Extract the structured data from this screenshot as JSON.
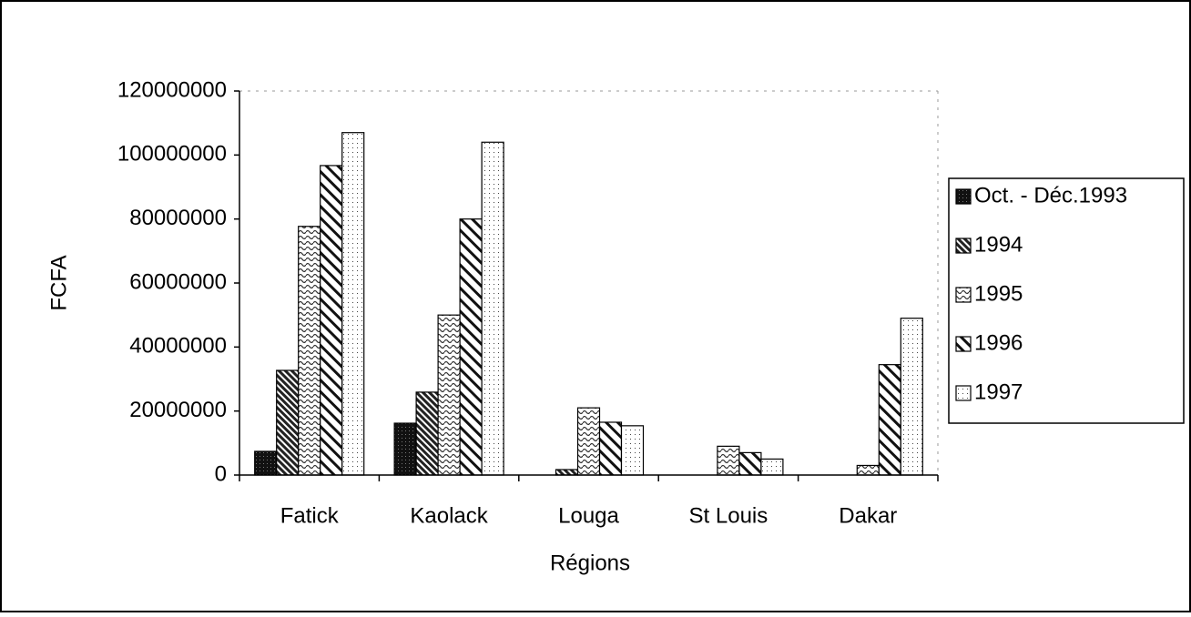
{
  "chart_data": {
    "type": "bar",
    "xlabel": "Régions",
    "ylabel": "FCFA",
    "categories": [
      "Fatick",
      "Kaolack",
      "Louga",
      "St Louis",
      "Dakar"
    ],
    "series": [
      {
        "name": "Oct. - Déc.1993",
        "color": "#000000",
        "values": [
          7400000,
          16200000,
          0,
          0,
          0
        ]
      },
      {
        "name": "1994",
        "color": "#000000",
        "values": [
          32700000,
          25900000,
          1700000,
          0,
          0
        ]
      },
      {
        "name": "1995",
        "color": "#000000",
        "values": [
          77700000,
          50000000,
          21000000,
          9000000,
          3000000
        ]
      },
      {
        "name": "1996",
        "color": "#000000",
        "values": [
          96700000,
          80000000,
          16500000,
          7000000,
          34500000
        ]
      },
      {
        "name": "1997",
        "color": "#000000",
        "values": [
          107000000,
          104000000,
          15400000,
          5000000,
          49000000
        ]
      }
    ],
    "ylim": [
      0,
      120000000
    ],
    "yticks": [
      0,
      20000000,
      40000000,
      60000000,
      80000000,
      100000000,
      120000000
    ],
    "legend": "right"
  }
}
